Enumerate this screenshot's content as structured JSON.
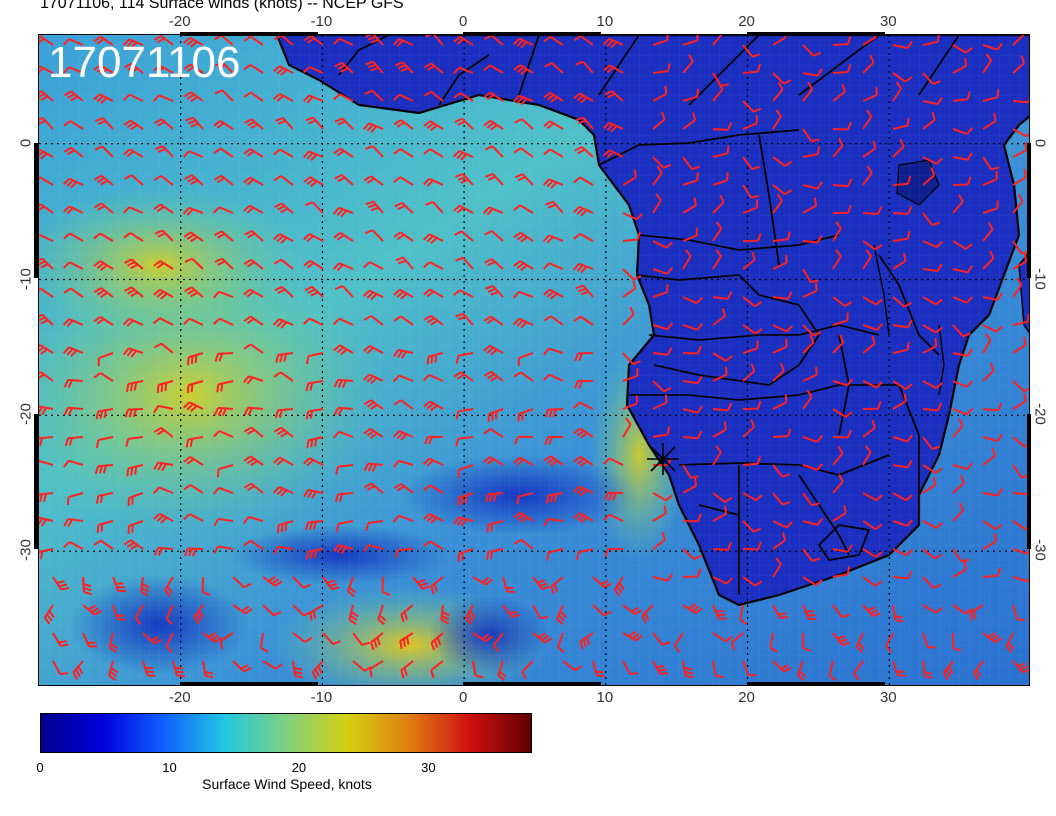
{
  "title": "17071106, 114 Surface winds (knots) -- NCEP GFS",
  "stamp": "17071106",
  "map": {
    "lon_range": [
      -30,
      40
    ],
    "lat_range": [
      -40,
      8
    ],
    "lon_ticks": [
      "-20",
      "-10",
      "0",
      "10",
      "20",
      "30"
    ],
    "lat_ticks": [
      "0",
      "-10",
      "-20",
      "-30"
    ],
    "barb_color": "#ff2020",
    "land_color": "#1428b4",
    "ocean_low_color": "#2a8fd0",
    "ocean_high_color": "#e4d21a"
  },
  "colorbar": {
    "labels": [
      "0",
      "10",
      "20",
      "30"
    ],
    "caption": "Surface Wind Speed, knots",
    "range": [
      0,
      38
    ],
    "stops": [
      "#00008c",
      "#0000dc",
      "#1060ff",
      "#20c8e0",
      "#80d080",
      "#d4d010",
      "#e08010",
      "#d01010",
      "#600000"
    ]
  }
}
